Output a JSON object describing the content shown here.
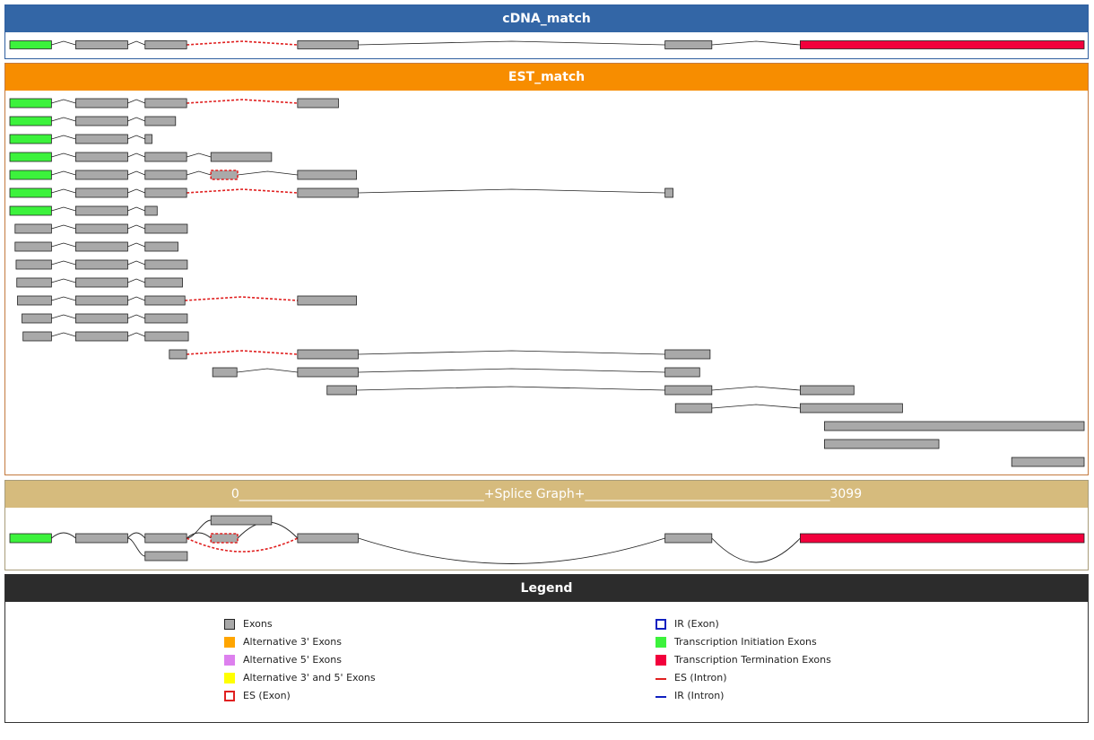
{
  "colors": {
    "exon": "#a9a9a9",
    "init": "#3cf23c",
    "term": "#f2003c",
    "alt3": "#ffa500",
    "alt5": "#dd80ee",
    "alt35": "#ffff00",
    "es": "#e02020",
    "ir": "#1020c0"
  },
  "cdna": {
    "title": "cDNA_match",
    "exons": [
      {
        "s": 0,
        "e": 120,
        "t": "init"
      },
      {
        "s": 190,
        "e": 340,
        "t": "exon"
      },
      {
        "s": 390,
        "e": 510,
        "t": "exon"
      },
      {
        "s": 830,
        "e": 1005,
        "t": "exon"
      },
      {
        "s": 1890,
        "e": 2025,
        "t": "exon"
      },
      {
        "s": 2280,
        "e": 3099,
        "t": "term"
      }
    ],
    "introns": [
      {
        "a": 2,
        "b": 3,
        "t": "es"
      }
    ]
  },
  "est": {
    "title": "EST_match",
    "rows": [
      {
        "exons": [
          {
            "s": 0,
            "e": 120,
            "t": "init"
          },
          {
            "s": 190,
            "e": 340
          },
          {
            "s": 390,
            "e": 510
          },
          {
            "s": 830,
            "e": 948
          }
        ],
        "es": [
          2
        ]
      },
      {
        "exons": [
          {
            "s": 0,
            "e": 120,
            "t": "init"
          },
          {
            "s": 190,
            "e": 340
          },
          {
            "s": 390,
            "e": 478
          }
        ]
      },
      {
        "exons": [
          {
            "s": 0,
            "e": 120,
            "t": "init"
          },
          {
            "s": 190,
            "e": 340
          },
          {
            "s": 390,
            "e": 410
          }
        ]
      },
      {
        "exons": [
          {
            "s": 0,
            "e": 120,
            "t": "init"
          },
          {
            "s": 190,
            "e": 340
          },
          {
            "s": 390,
            "e": 510
          },
          {
            "s": 580,
            "e": 755
          }
        ]
      },
      {
        "exons": [
          {
            "s": 0,
            "e": 120,
            "t": "init"
          },
          {
            "s": 190,
            "e": 340
          },
          {
            "s": 390,
            "e": 510
          },
          {
            "s": 580,
            "e": 657,
            "es": true
          },
          {
            "s": 830,
            "e": 1000
          }
        ]
      },
      {
        "exons": [
          {
            "s": 0,
            "e": 120,
            "t": "init"
          },
          {
            "s": 190,
            "e": 340
          },
          {
            "s": 390,
            "e": 510
          },
          {
            "s": 830,
            "e": 1005
          },
          {
            "s": 1890,
            "e": 1913
          }
        ],
        "es": [
          2
        ]
      },
      {
        "exons": [
          {
            "s": 0,
            "e": 120,
            "t": "init"
          },
          {
            "s": 190,
            "e": 340
          },
          {
            "s": 390,
            "e": 425
          }
        ]
      },
      {
        "exons": [
          {
            "s": 15,
            "e": 120
          },
          {
            "s": 190,
            "e": 340
          },
          {
            "s": 390,
            "e": 512
          }
        ]
      },
      {
        "exons": [
          {
            "s": 15,
            "e": 120
          },
          {
            "s": 190,
            "e": 340
          },
          {
            "s": 390,
            "e": 485
          }
        ]
      },
      {
        "exons": [
          {
            "s": 18,
            "e": 120
          },
          {
            "s": 190,
            "e": 340
          },
          {
            "s": 390,
            "e": 512
          }
        ]
      },
      {
        "exons": [
          {
            "s": 20,
            "e": 120
          },
          {
            "s": 190,
            "e": 340
          },
          {
            "s": 390,
            "e": 498
          }
        ]
      },
      {
        "exons": [
          {
            "s": 22,
            "e": 120
          },
          {
            "s": 190,
            "e": 340
          },
          {
            "s": 390,
            "e": 505
          },
          {
            "s": 830,
            "e": 1000
          }
        ],
        "es": [
          2
        ]
      },
      {
        "exons": [
          {
            "s": 35,
            "e": 120
          },
          {
            "s": 190,
            "e": 340
          },
          {
            "s": 390,
            "e": 512
          }
        ]
      },
      {
        "exons": [
          {
            "s": 38,
            "e": 120
          },
          {
            "s": 190,
            "e": 340
          },
          {
            "s": 390,
            "e": 515
          }
        ]
      },
      {
        "exons": [
          {
            "s": 460,
            "e": 510
          },
          {
            "s": 830,
            "e": 1005
          },
          {
            "s": 1890,
            "e": 2020
          }
        ],
        "es": [
          0
        ]
      },
      {
        "exons": [
          {
            "s": 585,
            "e": 655
          },
          {
            "s": 830,
            "e": 1005
          },
          {
            "s": 1890,
            "e": 1990
          }
        ]
      },
      {
        "exons": [
          {
            "s": 915,
            "e": 1000
          },
          {
            "s": 1890,
            "e": 2025
          },
          {
            "s": 2280,
            "e": 2435
          }
        ]
      },
      {
        "exons": [
          {
            "s": 1920,
            "e": 2025
          },
          {
            "s": 2280,
            "e": 2575
          }
        ]
      },
      {
        "exons": [
          {
            "s": 2350,
            "e": 3099
          }
        ]
      },
      {
        "exons": [
          {
            "s": 2350,
            "e": 2680
          }
        ]
      },
      {
        "exons": [
          {
            "s": 2890,
            "e": 3099
          }
        ]
      }
    ]
  },
  "splice_graph": {
    "start_label": "0",
    "end_label": "3099",
    "title_text": "0_______________________________________+Splice Graph+_______________________________________3099",
    "exons": [
      {
        "s": 0,
        "e": 120,
        "t": "init",
        "lane": 0
      },
      {
        "s": 190,
        "e": 340,
        "t": "exon",
        "lane": 0
      },
      {
        "s": 390,
        "e": 510,
        "t": "exon",
        "lane": 0
      },
      {
        "s": 390,
        "e": 512,
        "t": "exon",
        "lane": 1
      },
      {
        "s": 580,
        "e": 755,
        "t": "exon",
        "lane": -1
      },
      {
        "s": 580,
        "e": 657,
        "t": "exon",
        "lane": 0,
        "es": true
      },
      {
        "s": 830,
        "e": 1005,
        "t": "exon",
        "lane": 0
      },
      {
        "s": 1890,
        "e": 2025,
        "t": "exon",
        "lane": 0
      },
      {
        "s": 2280,
        "e": 3099,
        "t": "term",
        "lane": 0
      }
    ]
  },
  "legend": {
    "title": "Legend",
    "left": [
      {
        "label": "Exons",
        "type": "exon"
      },
      {
        "label": "Alternative 3' Exons",
        "type": "alt3"
      },
      {
        "label": "Alternative 5' Exons",
        "type": "alt5"
      },
      {
        "label": "Alternative 3' and 5' Exons",
        "type": "alt35"
      },
      {
        "label": "ES (Exon)",
        "type": "es-exon"
      }
    ],
    "right": [
      {
        "label": "IR (Exon)",
        "type": "ir-exon"
      },
      {
        "label": "Transcription Initiation Exons",
        "type": "init"
      },
      {
        "label": "Transcription Termination Exons",
        "type": "term"
      },
      {
        "label": "ES (Intron)",
        "type": "es-intron"
      },
      {
        "label": "IR (Intron)",
        "type": "ir-intron"
      }
    ]
  }
}
